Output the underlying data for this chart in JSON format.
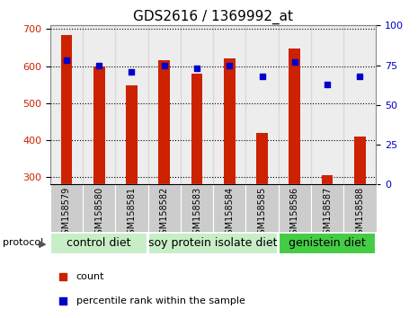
{
  "title": "GDS2616 / 1369992_at",
  "samples": [
    "GSM158579",
    "GSM158580",
    "GSM158581",
    "GSM158582",
    "GSM158583",
    "GSM158584",
    "GSM158585",
    "GSM158586",
    "GSM158587",
    "GSM158588"
  ],
  "counts": [
    685,
    600,
    547,
    615,
    580,
    620,
    420,
    648,
    305,
    410
  ],
  "percentiles": [
    78,
    75,
    71,
    75,
    73,
    75,
    68,
    77,
    63,
    68
  ],
  "ylim_left": [
    280,
    710
  ],
  "ylim_right": [
    0,
    100
  ],
  "yticks_left": [
    300,
    400,
    500,
    600,
    700
  ],
  "yticks_right": [
    0,
    25,
    50,
    75,
    100
  ],
  "groups": [
    {
      "label": "control diet",
      "start": 0,
      "end": 3,
      "color": "#c8eec8"
    },
    {
      "label": "soy protein isolate diet",
      "start": 3,
      "end": 7,
      "color": "#c8eec8"
    },
    {
      "label": "genistein diet",
      "start": 7,
      "end": 10,
      "color": "#44cc44"
    }
  ],
  "bar_color": "#cc2200",
  "dot_color": "#0000cc",
  "bar_bottom": 280,
  "bar_width": 0.35,
  "legend_items": [
    {
      "label": "count",
      "color": "#cc2200"
    },
    {
      "label": "percentile rank within the sample",
      "color": "#0000cc"
    }
  ],
  "protocol_label": "protocol",
  "title_fontsize": 11,
  "tick_fontsize": 7,
  "group_label_fontsize": 9,
  "legend_fontsize": 8,
  "col_bg_color": "#cccccc",
  "plot_bg_color": "#ffffff"
}
